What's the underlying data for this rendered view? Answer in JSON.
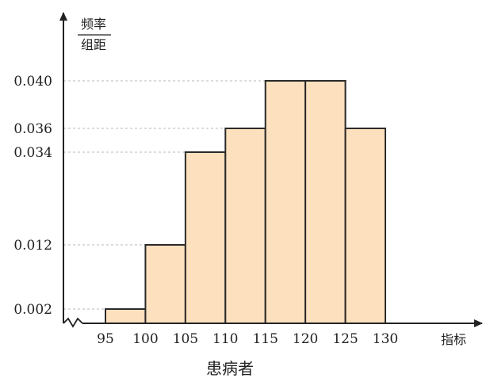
{
  "chart_data": {
    "type": "bar",
    "ylabel_top": "频率",
    "ylabel_bottom": "组距",
    "xlabel": "指标",
    "caption": "患病者",
    "x_ticks": [
      "95",
      "100",
      "105",
      "110",
      "115",
      "120",
      "125",
      "130"
    ],
    "y_ticks": [
      "0.002",
      "0.012",
      "0.034",
      "0.036",
      "0.040"
    ],
    "bins": [
      {
        "from": 95,
        "to": 100,
        "value": 0.002
      },
      {
        "from": 100,
        "to": 105,
        "value": 0.012
      },
      {
        "from": 105,
        "to": 110,
        "value": 0.034
      },
      {
        "from": 110,
        "to": 115,
        "value": 0.036
      },
      {
        "from": 115,
        "to": 120,
        "value": 0.04
      },
      {
        "from": 120,
        "to": 125,
        "value": 0.04
      },
      {
        "from": 125,
        "to": 130,
        "value": 0.036
      }
    ],
    "colors": {
      "bar_fill": "#fde0bd",
      "bar_stroke": "#2a2a2a",
      "axis": "#222222",
      "grid": "#b8b8b8"
    }
  }
}
